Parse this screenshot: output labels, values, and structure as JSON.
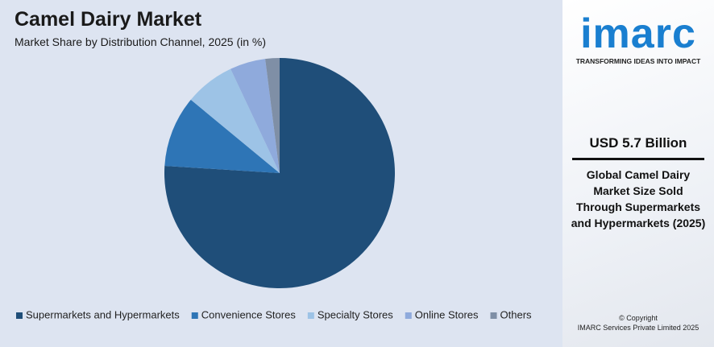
{
  "chart_data": {
    "type": "pie",
    "title": "Camel Dairy Market",
    "subtitle": "Market Share by Distribution Channel, 2025 (in %)",
    "categories": [
      "Supermarkets and Hypermarkets",
      "Convenience Stores",
      "Specialty Stores",
      "Online Stores",
      "Others"
    ],
    "values": [
      76,
      10,
      7,
      5,
      2
    ],
    "colors": [
      "#1f4e79",
      "#2e75b6",
      "#9dc3e6",
      "#8faadc",
      "#7f8fa6"
    ],
    "legend": "bottom"
  },
  "sidebar": {
    "logo": "imarc",
    "tagline": "TRANSFORMING IDEAS INTO IMPACT",
    "highlight": "USD 5.7 Billion",
    "description": "Global Camel Dairy Market Size Sold Through Supermarkets and Hypermarkets (2025)",
    "copyright": "© Copyright",
    "company": "IMARC Services Private Limited 2025"
  }
}
